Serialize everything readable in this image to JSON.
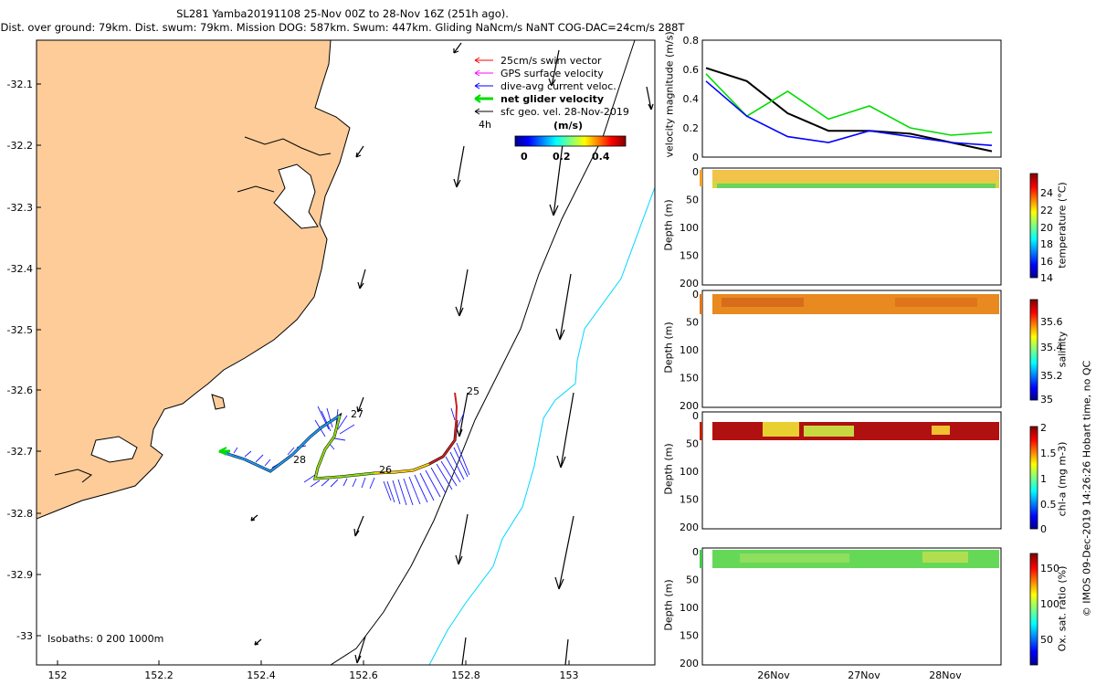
{
  "title": {
    "line1": "SL281 Yamba20191108 25-Nov 00Z to 28-Nov 16Z (251h ago).",
    "line2": "Dist. over ground: 79km. Dist. swum: 79km. Mission DOG: 587km. Swum: 447km. Gliding NaNcm/s NaNT COG-DAC=24cm/s 288T"
  },
  "map": {
    "lon_ticks": [
      "152",
      "152.2",
      "152.4",
      "152.6",
      "152.8",
      "153"
    ],
    "lat_ticks": [
      "-32.1",
      "-32.2",
      "-32.3",
      "-32.4",
      "-32.5",
      "-32.6",
      "-32.7",
      "-32.8",
      "-32.9",
      "-33"
    ],
    "legend": [
      {
        "label": "25cm/s swim vector",
        "color": "#ff0000"
      },
      {
        "label": "GPS surface velocity",
        "color": "#ff00ff"
      },
      {
        "label": "dive-avg current veloc.",
        "color": "#0000ff"
      },
      {
        "label": "net glider velocity",
        "color": "#00dd00"
      },
      {
        "label": "sfc geo. vel. 28-Nov-2019",
        "color": "#000000"
      }
    ],
    "legend_extra": "4h",
    "colorbar": {
      "title": "(m/s)",
      "ticks": [
        "0",
        "0.2",
        "0.4"
      ]
    },
    "isobaths": "Isobaths: 0   200  1000m",
    "day_labels": [
      "25",
      "26",
      "27",
      "28"
    ],
    "land_color": "#fdcc99"
  },
  "panels": {
    "x_ticks": [
      "26Nov",
      "27Nov",
      "28Nov"
    ],
    "velocity": {
      "ylabel": "velocity magnitude (m/s)",
      "ticks": [
        "0",
        "0.2",
        "0.4",
        "0.6",
        "0.8"
      ]
    },
    "depth_ylabel": "Depth (m)",
    "depth_ticks": [
      "0",
      "50",
      "100",
      "150",
      "200"
    ],
    "temperature": {
      "cbar_label": "temperature (°C)",
      "ticks": [
        "14",
        "16",
        "18",
        "20",
        "22",
        "24"
      ]
    },
    "salinity": {
      "cbar_label": "salinity",
      "ticks": [
        "35",
        "35.2",
        "35.4",
        "35.6"
      ]
    },
    "chla": {
      "cbar_label": "chl-a (mg m-3)",
      "ticks": [
        "0",
        "0.5",
        "1",
        "1.5",
        "2"
      ]
    },
    "oxygen": {
      "cbar_label": "Ox. sat. ratio (%)",
      "ticks": [
        "50",
        "100",
        "150"
      ]
    }
  },
  "credit": "© IMOS 09-Dec-2019 14:26:26 Hobart time, no QC",
  "chart_data": [
    {
      "type": "line",
      "title": "",
      "xlabel": "",
      "ylabel": "velocity magnitude (m/s)",
      "ylim": [
        0,
        0.8
      ],
      "x": [
        "25Nov 00Z",
        "25Nov 12Z",
        "26Nov 00Z",
        "26Nov 12Z",
        "27Nov 00Z",
        "27Nov 12Z",
        "28Nov 00Z",
        "28Nov 16Z"
      ],
      "series": [
        {
          "name": "",
          "color": "#000000",
          "values": [
            0.61,
            0.52,
            0.3,
            0.18,
            0.18,
            0.16,
            0.1,
            0.04
          ]
        },
        {
          "name": "",
          "color": "#00dd00",
          "values": [
            0.57,
            0.28,
            0.45,
            0.26,
            0.35,
            0.2,
            0.15,
            0.17
          ]
        },
        {
          "name": "",
          "color": "#0000ff",
          "values": [
            0.52,
            0.28,
            0.14,
            0.1,
            0.18,
            0.14,
            0.1,
            0.08
          ]
        }
      ]
    }
  ]
}
